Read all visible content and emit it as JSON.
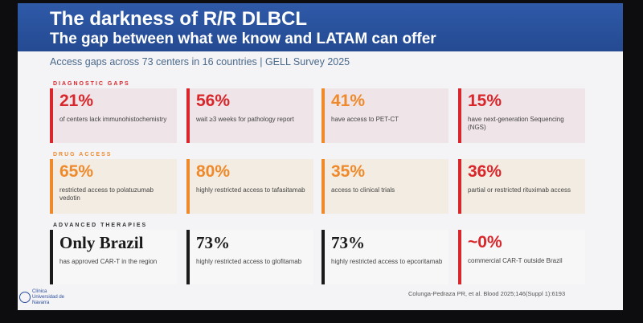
{
  "header": {
    "title": "The darkness of R/R DLBCL",
    "subtitle": "The gap between what we know and LATAM can offer",
    "caption": "Access gaps across 73 centers in 16 countries  |  GELL Survey 2025"
  },
  "sections": [
    {
      "label": "DIAGNOSTIC GAPS",
      "cards": [
        {
          "stat": "21%",
          "text": "of centers lack immunohistochemistry"
        },
        {
          "stat": "56%",
          "text": "wait ≥3 weeks for pathology report"
        },
        {
          "stat": "41%",
          "text": "have access to PET-CT"
        },
        {
          "stat": "15%",
          "text": "have next-generation Sequencing (NGS)"
        }
      ]
    },
    {
      "label": "DRUG ACCESS",
      "cards": [
        {
          "stat": "65%",
          "text": "restricted access to polatuzumab vedotin"
        },
        {
          "stat": "80%",
          "text": "highly restricted access to tafasitamab"
        },
        {
          "stat": "35%",
          "text": "access to clinical trials"
        },
        {
          "stat": "36%",
          "text": "partial or restricted rituximab access"
        }
      ]
    },
    {
      "label": "ADVANCED THERAPIES",
      "cards": [
        {
          "stat": "Only Brazil",
          "text": "has approved CAR-T in the region"
        },
        {
          "stat": "73%",
          "text": "highly restricted access to glofitamab"
        },
        {
          "stat": "73%",
          "text": "highly restricted access to epcoritamab"
        },
        {
          "stat": "~0%",
          "text": "commercial CAR-T outside Brazil"
        }
      ]
    }
  ],
  "footer": {
    "citation": "Colunga-Pedraza PR, et al. Blood 2025;146(Suppl 1):6193",
    "logo": "Clínica Universidad de Navarra"
  }
}
